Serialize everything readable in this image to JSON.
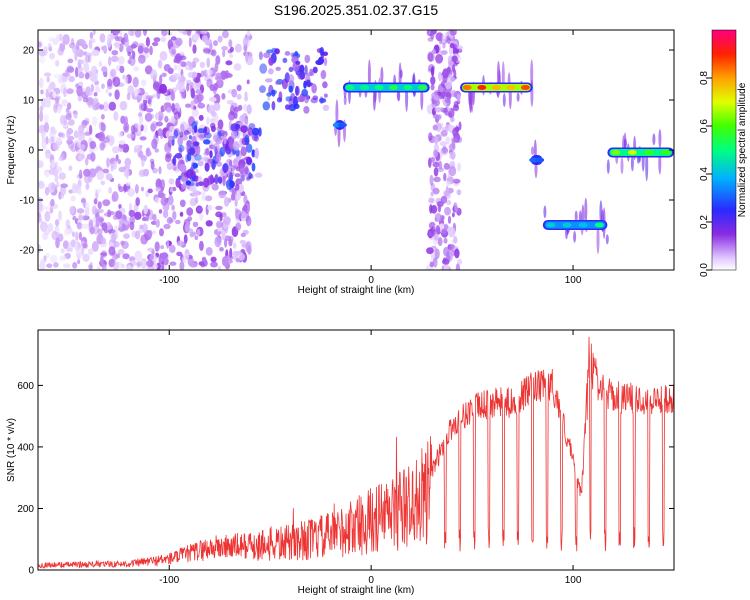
{
  "title": "S196.2025.351.02.37.G15",
  "chart_data": [
    {
      "type": "heatmap",
      "title": "S196.2025.351.02.37.G15",
      "xlabel": "Height of straight line (km)",
      "ylabel": "Frequency (Hz)",
      "xlim": [
        -165,
        150
      ],
      "ylim": [
        -24,
        24
      ],
      "x_ticks": [
        -100,
        0,
        100
      ],
      "y_ticks": [
        -20,
        -10,
        0,
        10,
        20
      ],
      "colorbar": {
        "label": "Normalized spectral amplitude",
        "range": [
          0,
          1
        ],
        "ticks": [
          0.0,
          0.2,
          0.4,
          0.6,
          0.8
        ]
      },
      "features": [
        {
          "x_range": [
            -165,
            -60
          ],
          "freq_range": [
            -24,
            24
          ],
          "amplitude": 0.15,
          "kind": "diffuse noise"
        },
        {
          "x_range": [
            -100,
            -55
          ],
          "freq_range": [
            -7,
            5
          ],
          "amplitude": 0.3,
          "kind": "diffuse cluster"
        },
        {
          "x_range": [
            -55,
            -22
          ],
          "freq_range": [
            8,
            20
          ],
          "amplitude": 0.3,
          "kind": "diffuse cluster"
        },
        {
          "x_range": [
            -18,
            -13
          ],
          "freq": 5,
          "amplitude": 0.35,
          "kind": "line"
        },
        {
          "x_range": [
            -14,
            29
          ],
          "freq": 12.5,
          "amplitude": 0.6,
          "kind": "line"
        },
        {
          "x_range": [
            29,
            44
          ],
          "freq_range": [
            -24,
            24
          ],
          "amplitude": 0.15,
          "kind": "vertical noise band"
        },
        {
          "x_range": [
            44,
            80
          ],
          "freq": 12.5,
          "amplitude": 0.95,
          "kind": "line"
        },
        {
          "x_range": [
            79,
            85
          ],
          "freq": -2,
          "amplitude": 0.35,
          "kind": "line"
        },
        {
          "x_range": [
            85,
            117
          ],
          "freq": -15,
          "amplitude": 0.5,
          "kind": "line"
        },
        {
          "x_range": [
            117,
            150
          ],
          "freq": -0.5,
          "amplitude": 0.7,
          "kind": "line"
        }
      ]
    },
    {
      "type": "line",
      "xlabel": "Height of straight line (km)",
      "ylabel": "SNR (10 * v/v)",
      "xlim": [
        -165,
        150
      ],
      "ylim": [
        0,
        780
      ],
      "x_ticks": [
        -100,
        0,
        100
      ],
      "y_ticks": [
        0,
        200,
        400,
        600
      ],
      "series": [
        {
          "name": "SNR",
          "color": "#ee3333",
          "envelope": {
            "x": [
              -165,
              -120,
              -100,
              -80,
              -60,
              -40,
              -20,
              0,
              20,
              30,
              40,
              50,
              60,
              70,
              80,
              90,
              98,
              104,
              108,
              115,
              120,
              140,
              150
            ],
            "y": [
              20,
              25,
              45,
              90,
              100,
              110,
              140,
              200,
              260,
              330,
              480,
              540,
              560,
              560,
              610,
              620,
              420,
              250,
              650,
              600,
              580,
              570,
              580
            ]
          }
        }
      ]
    }
  ]
}
